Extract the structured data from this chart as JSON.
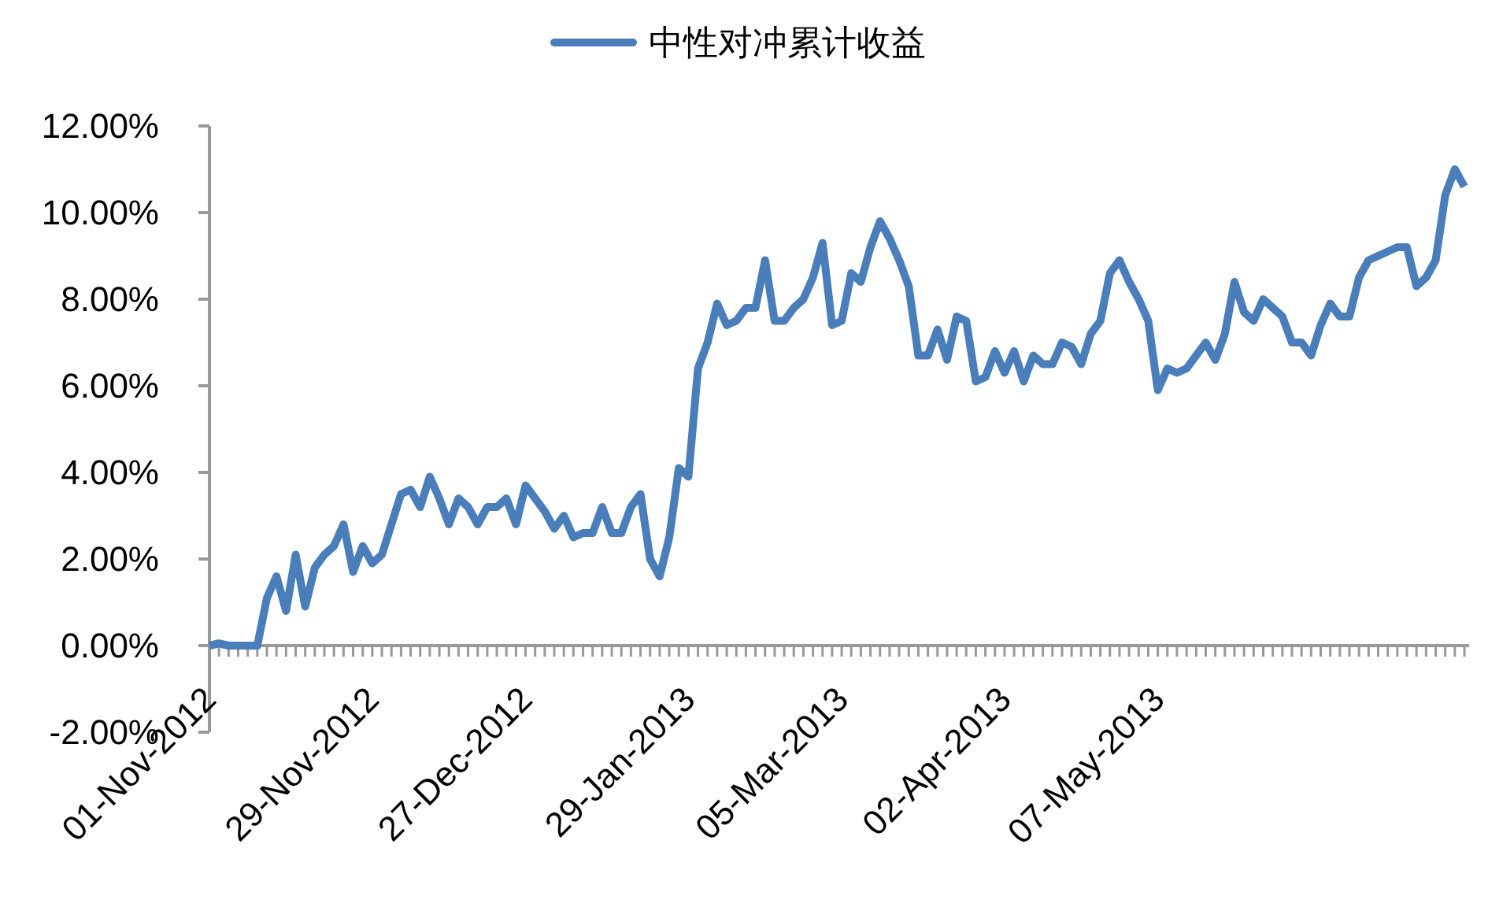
{
  "chart_data": {
    "type": "line",
    "categories": [
      "01-Nov-2012",
      null,
      null,
      null,
      null,
      null,
      null,
      null,
      null,
      null,
      null,
      null,
      null,
      null,
      null,
      null,
      null,
      "29-Nov-2012",
      null,
      null,
      null,
      null,
      null,
      null,
      null,
      null,
      null,
      null,
      null,
      null,
      null,
      null,
      null,
      "27-Dec-2012",
      null,
      null,
      null,
      null,
      null,
      null,
      null,
      null,
      null,
      null,
      null,
      null,
      null,
      null,
      null,
      null,
      "29-Jan-2013",
      null,
      null,
      null,
      null,
      null,
      null,
      null,
      null,
      null,
      null,
      null,
      null,
      null,
      null,
      null,
      "05-Mar-2013",
      null,
      null,
      null,
      null,
      null,
      null,
      null,
      null,
      null,
      null,
      null,
      null,
      null,
      null,
      null,
      null,
      "02-Apr-2013",
      null,
      null,
      null,
      null,
      null,
      null,
      null,
      null,
      null,
      null,
      null,
      null,
      null,
      null,
      null,
      "07-May-2013",
      null,
      null,
      null,
      null,
      null,
      null,
      null,
      null,
      null,
      null,
      null,
      null,
      null,
      null,
      null,
      null,
      null,
      null,
      null,
      null,
      null,
      null,
      null,
      null,
      null,
      null,
      null,
      null,
      null,
      null,
      null,
      null
    ],
    "series": [
      {
        "name": "中性对冲累计收益",
        "color": "#4a7ebb",
        "values": [
          0.0,
          0.05,
          0.0,
          0.0,
          0.0,
          0.0,
          1.1,
          1.6,
          0.8,
          2.1,
          0.9,
          1.8,
          2.1,
          2.3,
          2.8,
          1.7,
          2.3,
          1.9,
          2.1,
          2.8,
          3.5,
          3.6,
          3.2,
          3.9,
          3.4,
          2.8,
          3.4,
          3.2,
          2.8,
          3.2,
          3.2,
          3.4,
          2.8,
          3.7,
          3.4,
          3.1,
          2.7,
          3.0,
          2.5,
          2.6,
          2.6,
          3.2,
          2.6,
          2.6,
          3.2,
          3.5,
          2.0,
          1.6,
          2.5,
          4.1,
          3.9,
          6.4,
          7.0,
          7.9,
          7.4,
          7.5,
          7.8,
          7.8,
          8.9,
          7.5,
          7.5,
          7.8,
          8.0,
          8.5,
          9.3,
          7.4,
          7.5,
          8.6,
          8.4,
          9.2,
          9.8,
          9.4,
          8.9,
          8.3,
          6.7,
          6.7,
          7.3,
          6.6,
          7.6,
          7.5,
          6.1,
          6.2,
          6.8,
          6.3,
          6.8,
          6.1,
          6.7,
          6.5,
          6.5,
          7.0,
          6.9,
          6.5,
          7.2,
          7.5,
          8.6,
          8.9,
          8.4,
          8.0,
          7.5,
          5.9,
          6.4,
          6.3,
          6.4,
          6.7,
          7.0,
          6.6,
          7.2,
          8.4,
          7.7,
          7.5,
          8.0,
          7.8,
          7.6,
          7.0,
          7.0,
          6.7,
          7.4,
          7.9,
          7.6,
          7.6,
          8.5,
          8.9,
          9.0,
          9.1,
          9.2,
          9.2,
          8.3,
          8.5,
          8.9,
          10.4,
          11.0,
          10.6
        ]
      }
    ],
    "ylim": [
      -2,
      12
    ],
    "yticks": [
      {
        "value": -2,
        "label": "-2.00%"
      },
      {
        "value": 0,
        "label": "0.00%"
      },
      {
        "value": 2,
        "label": "2.00%"
      },
      {
        "value": 4,
        "label": "4.00%"
      },
      {
        "value": 6,
        "label": "6.00%"
      },
      {
        "value": 8,
        "label": "8.00%"
      },
      {
        "value": 10,
        "label": "10.00%"
      },
      {
        "value": 12,
        "label": "12.00%"
      }
    ],
    "legend": "top",
    "grid": false,
    "marker": "none",
    "line_style": "solid"
  }
}
